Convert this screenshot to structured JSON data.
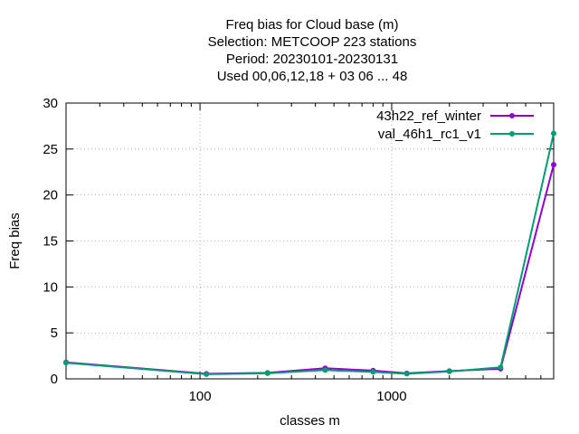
{
  "chart_data": {
    "type": "line",
    "title_lines": [
      "Freq bias  for Cloud base (m)",
      "Selection: METCOOP    223 stations",
      "Period: 20230101-20230131",
      "Used  00,06,12,18  + 03 06 ... 48"
    ],
    "xlabel": "classes m",
    "ylabel": "Freq bias",
    "x_scale": "log",
    "xlim": [
      20,
      7000
    ],
    "ylim": [
      0,
      30
    ],
    "x_ticks": [
      100,
      1000
    ],
    "y_ticks": [
      0,
      5,
      10,
      15,
      20,
      25,
      30
    ],
    "grid": true,
    "legend_position": "top-right",
    "series": [
      {
        "name": "43h22_ref_winter",
        "color": "#9400d3",
        "points": [
          [
            20,
            1.8
          ],
          [
            108,
            0.55
          ],
          [
            225,
            0.65
          ],
          [
            450,
            1.15
          ],
          [
            800,
            0.9
          ],
          [
            1200,
            0.6
          ],
          [
            2000,
            0.85
          ],
          [
            3700,
            1.1
          ],
          [
            7000,
            23.3
          ]
        ]
      },
      {
        "name": "val_46h1_rc1_v1",
        "color": "#009e73",
        "points": [
          [
            20,
            1.75
          ],
          [
            108,
            0.5
          ],
          [
            225,
            0.6
          ],
          [
            450,
            0.95
          ],
          [
            800,
            0.75
          ],
          [
            1200,
            0.55
          ],
          [
            2000,
            0.8
          ],
          [
            3700,
            1.25
          ],
          [
            7000,
            26.7
          ]
        ]
      }
    ]
  }
}
